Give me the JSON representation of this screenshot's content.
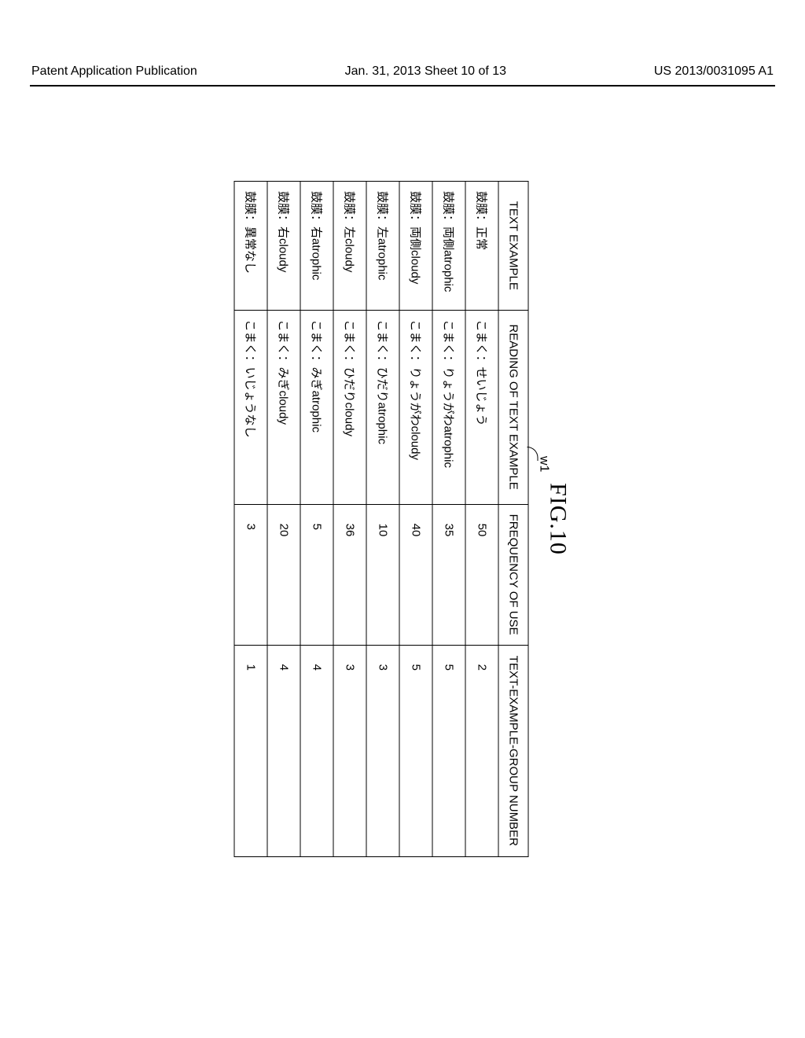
{
  "header": {
    "left": "Patent Application Publication",
    "center": "Jan. 31, 2013  Sheet 10 of 13",
    "right": "US 2013/0031095 A1"
  },
  "figure": {
    "title": "FIG.10",
    "label": "w1",
    "table": {
      "columns": [
        "TEXT EXAMPLE",
        "READING OF TEXT EXAMPLE",
        "FREQUENCY OF USE",
        "TEXT-EXAMPLE-GROUP NUMBER"
      ],
      "rows": [
        [
          "鼓膜：正常",
          "こまく：せいじょう",
          "50",
          "2"
        ],
        [
          "鼓膜：両側atrophic",
          "こまく：りょうがわatrophic",
          "35",
          "5"
        ],
        [
          "鼓膜：両側cloudy",
          "こまく：りょうがわcloudy",
          "40",
          "5"
        ],
        [
          "鼓膜：左atrophic",
          "こまく：ひだりatrophic",
          "10",
          "3"
        ],
        [
          "鼓膜：左cloudy",
          "こまく：ひだりcloudy",
          "36",
          "3"
        ],
        [
          "鼓膜：右atrophic",
          "こまく：みぎatrophic",
          "5",
          "4"
        ],
        [
          "鼓膜：右cloudy",
          "こまく：みぎcloudy",
          "20",
          "4"
        ],
        [
          "鼓膜：異常なし",
          "こまく：いじょうなし",
          "3",
          "1"
        ]
      ]
    }
  }
}
